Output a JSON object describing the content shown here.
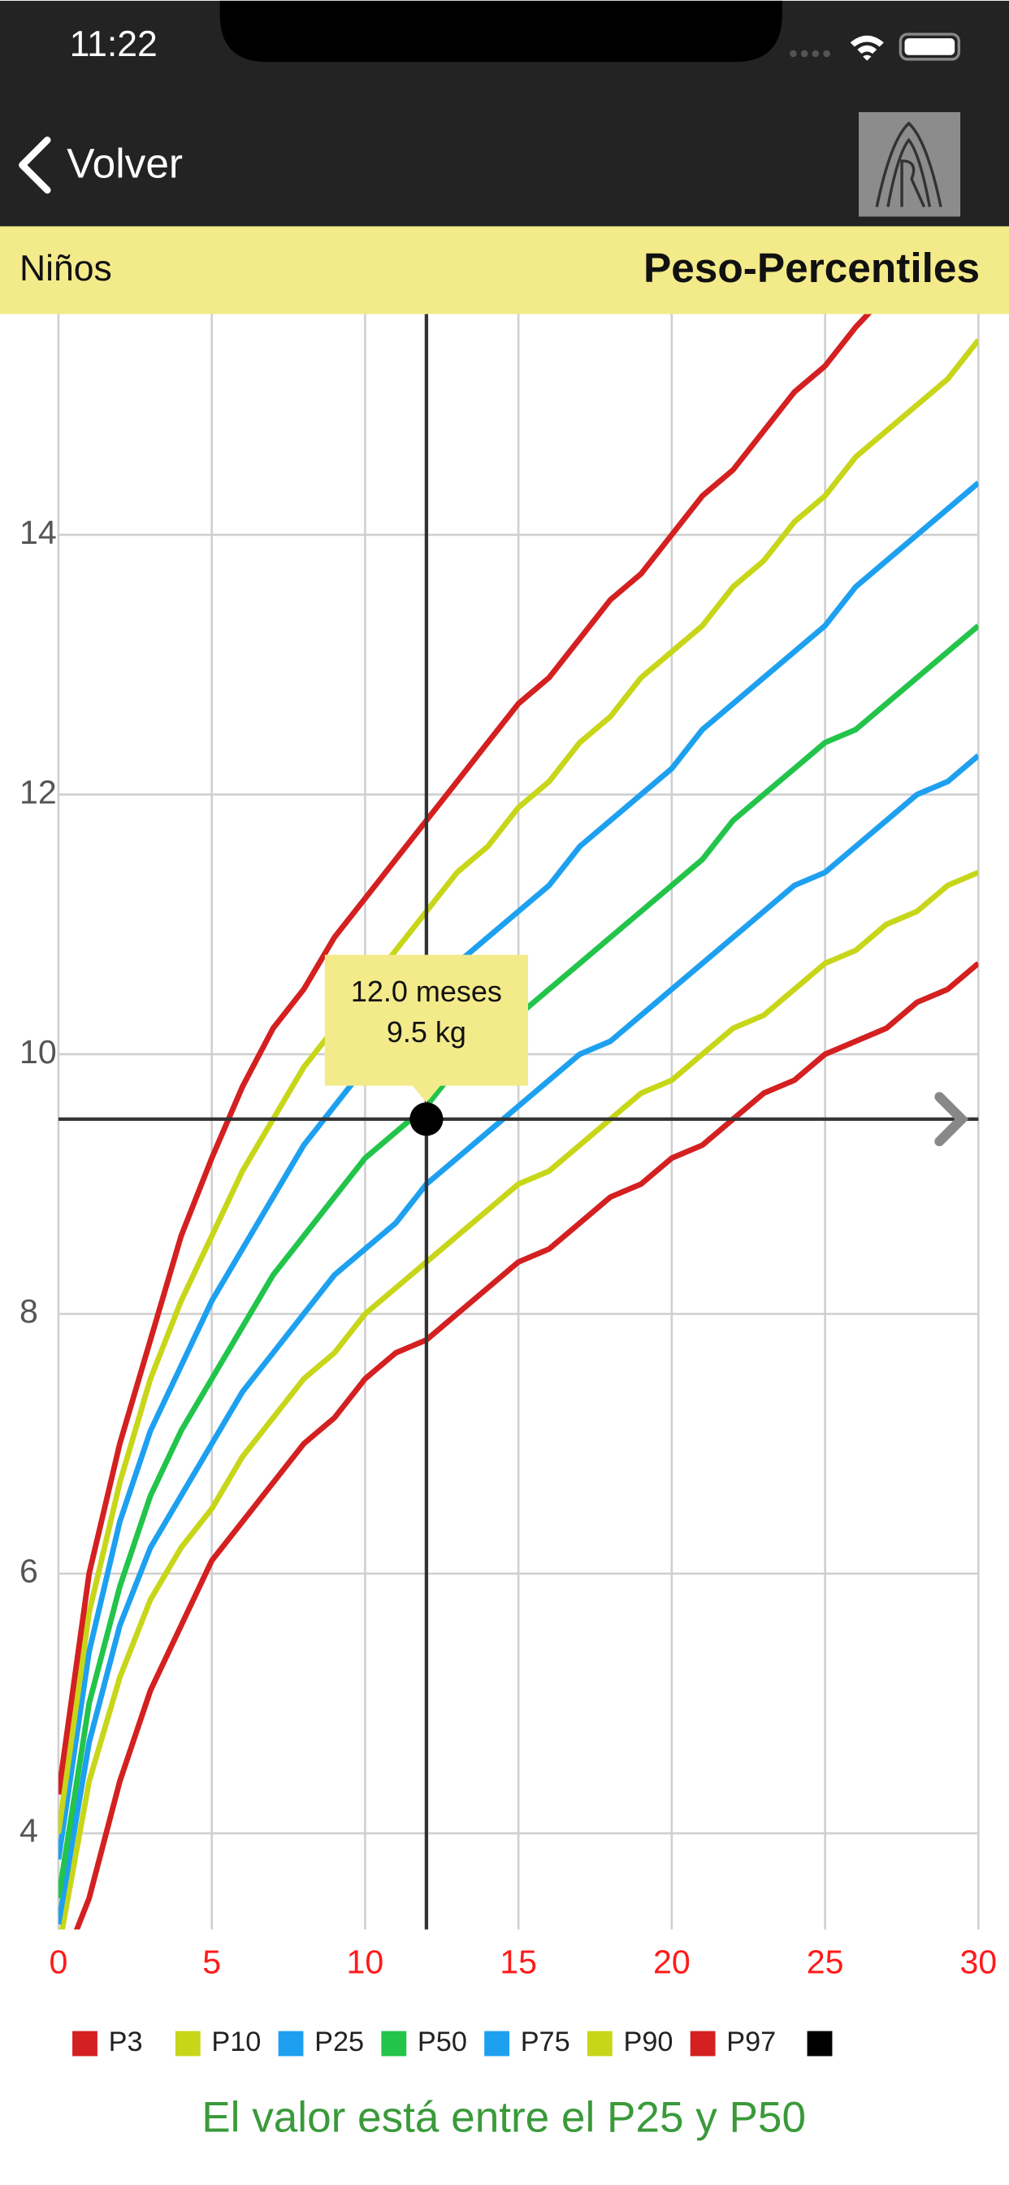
{
  "status_bar": {
    "time": "11:22"
  },
  "nav": {
    "back": "Volver"
  },
  "header": {
    "left": "Niños",
    "title": "Peso-Percentiles"
  },
  "chart_data": {
    "type": "line",
    "x": [
      0,
      1,
      2,
      3,
      4,
      5,
      6,
      7,
      8,
      9,
      10,
      11,
      12,
      13,
      14,
      15,
      16,
      17,
      18,
      19,
      20,
      21,
      22,
      23,
      24,
      25,
      26,
      27,
      28,
      29,
      30
    ],
    "series": [
      {
        "name": "P3",
        "color": "#d42020",
        "values": [
          2.9,
          3.5,
          4.4,
          5.1,
          5.6,
          6.1,
          6.4,
          6.7,
          7.0,
          7.2,
          7.5,
          7.7,
          7.8,
          8.0,
          8.2,
          8.4,
          8.5,
          8.7,
          8.9,
          9.0,
          9.2,
          9.3,
          9.5,
          9.7,
          9.8,
          10.0,
          10.1,
          10.2,
          10.4,
          10.5,
          10.7
        ]
      },
      {
        "name": "P10",
        "color": "#c8d61a",
        "values": [
          3.1,
          4.4,
          5.2,
          5.8,
          6.2,
          6.5,
          6.9,
          7.2,
          7.5,
          7.7,
          8.0,
          8.2,
          8.4,
          8.6,
          8.8,
          9.0,
          9.1,
          9.3,
          9.5,
          9.7,
          9.8,
          10.0,
          10.2,
          10.3,
          10.5,
          10.7,
          10.8,
          11.0,
          11.1,
          11.3,
          11.4
        ]
      },
      {
        "name": "P25",
        "color": "#1ea0f0",
        "values": [
          3.3,
          4.7,
          5.6,
          6.2,
          6.6,
          7.0,
          7.4,
          7.7,
          8.0,
          8.3,
          8.5,
          8.7,
          9.0,
          9.2,
          9.4,
          9.6,
          9.8,
          10.0,
          10.1,
          10.3,
          10.5,
          10.7,
          10.9,
          11.1,
          11.3,
          11.4,
          11.6,
          11.8,
          12.0,
          12.1,
          12.3
        ]
      },
      {
        "name": "P50",
        "color": "#22c44a",
        "values": [
          3.5,
          5.0,
          5.9,
          6.6,
          7.1,
          7.5,
          7.9,
          8.3,
          8.6,
          8.9,
          9.2,
          9.4,
          9.6,
          9.9,
          10.1,
          10.3,
          10.5,
          10.7,
          10.9,
          11.1,
          11.3,
          11.5,
          11.8,
          12.0,
          12.2,
          12.4,
          12.5,
          12.7,
          12.9,
          13.1,
          13.3
        ]
      },
      {
        "name": "P75",
        "color": "#1ea0f0",
        "values": [
          3.8,
          5.4,
          6.4,
          7.1,
          7.6,
          8.1,
          8.5,
          8.9,
          9.3,
          9.6,
          9.9,
          10.2,
          10.5,
          10.7,
          10.9,
          11.1,
          11.3,
          11.6,
          11.8,
          12.0,
          12.2,
          12.5,
          12.7,
          12.9,
          13.1,
          13.3,
          13.6,
          13.8,
          14.0,
          14.2,
          14.4
        ]
      },
      {
        "name": "P90",
        "color": "#c8d61a",
        "values": [
          4.0,
          5.7,
          6.7,
          7.5,
          8.1,
          8.6,
          9.1,
          9.5,
          9.9,
          10.2,
          10.5,
          10.8,
          11.1,
          11.4,
          11.6,
          11.9,
          12.1,
          12.4,
          12.6,
          12.9,
          13.1,
          13.3,
          13.6,
          13.8,
          14.1,
          14.3,
          14.6,
          14.8,
          15.0,
          15.2,
          15.5
        ]
      },
      {
        "name": "P97",
        "color": "#d42020",
        "values": [
          4.3,
          6.0,
          7.0,
          7.8,
          8.6,
          9.2,
          9.75,
          10.2,
          10.5,
          10.9,
          11.2,
          11.5,
          11.8,
          12.1,
          12.4,
          12.7,
          12.9,
          13.2,
          13.5,
          13.7,
          14.0,
          14.3,
          14.5,
          14.8,
          15.1,
          15.3,
          15.6,
          15.85,
          16.1,
          16.3,
          16.5
        ]
      }
    ],
    "xlim": [
      0,
      30
    ],
    "xticks": [
      0,
      5,
      10,
      15,
      20,
      25,
      30
    ],
    "ylim": [
      3.26,
      15.7
    ],
    "yticks": [
      4,
      6,
      8,
      10,
      12,
      14
    ],
    "grid": true,
    "crosshair": {
      "x": 12,
      "y": 9.5,
      "color": "#000000",
      "label_lines": [
        "12.0 meses",
        "9.5 kg"
      ]
    }
  },
  "footer": {
    "message": "El valor está entre el P25 y P50"
  }
}
